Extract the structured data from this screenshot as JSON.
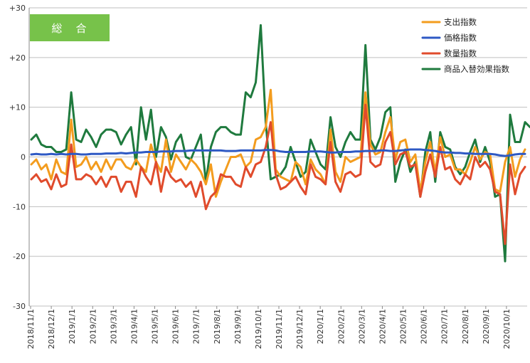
{
  "chart_data": {
    "type": "line",
    "title": "総　合",
    "colors": {
      "title_box": "#77c24a",
      "grid": "#bfbfbf",
      "axis": "#888888"
    },
    "ylim": [
      -30,
      30
    ],
    "y_ticks": [
      {
        "value": 30,
        "label": "+30"
      },
      {
        "value": 20,
        "label": "+20"
      },
      {
        "value": 10,
        "label": "+10"
      },
      {
        "value": 0,
        "label": "0"
      },
      {
        "value": -10,
        "label": "-10"
      },
      {
        "value": -20,
        "label": "-20"
      },
      {
        "value": -30,
        "label": "-30"
      }
    ],
    "grid": true,
    "legend_position": "top-right",
    "x_tick_labels": [
      "2018/11/1",
      "2018/12/1",
      "2019/1/1",
      "2019/2/1",
      "2019/3/1",
      "2019/4/1",
      "2019/5/1",
      "2019/6/1",
      "2019/7/1",
      "2019/8/1",
      "2019/9/1",
      "2019/10/1",
      "2019/11/1",
      "2019/12/1",
      "2020/1/1",
      "2020/2/1",
      "2020/3/1",
      "2020/4/1",
      "2020/5/1",
      "2020/6/1",
      "2020/7/1",
      "2020/8/1",
      "2020/9/1",
      "2020/10/1"
    ],
    "x_unit": "weeks",
    "series": [
      {
        "name": "支出指数",
        "color": "#f39c1e",
        "values": [
          -1.5,
          -0.5,
          -2.5,
          -1.5,
          -4.5,
          -0.5,
          -3,
          -3.5,
          7.5,
          -2,
          -1.5,
          0,
          -2.5,
          -1,
          -3,
          -0.5,
          -2.5,
          -0.5,
          -0.5,
          -2,
          -2.5,
          -0.5,
          -2,
          -3,
          2.5,
          -1,
          -3,
          3.5,
          -3,
          0.5,
          -1,
          -2.5,
          -0.5,
          -1.5,
          -3,
          -5.5,
          -1.5,
          -8,
          -5,
          -2.5,
          0,
          0,
          0.5,
          -2,
          -1,
          3.5,
          4,
          6,
          13.5,
          -2.5,
          -4,
          -4.5,
          -5,
          -1,
          -2,
          -5.5,
          -0.5,
          -2.5,
          -3.5,
          -5.5,
          5.5,
          -3,
          -5,
          0,
          -1,
          -0.5,
          0,
          13,
          2.5,
          0.5,
          1,
          5,
          8,
          -0.5,
          3,
          3.5,
          -1,
          0.5,
          -7,
          -1,
          3,
          -3,
          4,
          0,
          0.5,
          -2.5,
          -2.5,
          -3.5,
          -1,
          2,
          -0.5,
          1,
          0.5,
          -6.5,
          -7,
          -1,
          2,
          -4,
          -0.5,
          1.5
        ]
      },
      {
        "name": "価格指数",
        "color": "#2e59c4",
        "values": [
          0.5,
          0.6,
          0.5,
          0.5,
          0.6,
          0.5,
          0.6,
          0.5,
          0.6,
          0.6,
          0.5,
          0.5,
          0.6,
          0.6,
          0.6,
          0.7,
          0.7,
          0.7,
          0.8,
          0.7,
          0.8,
          0.9,
          0.9,
          1,
          1,
          1,
          1.1,
          1.1,
          1.1,
          1.2,
          1.2,
          1.2,
          1.3,
          1.3,
          1.3,
          1.3,
          1.3,
          1.3,
          1.3,
          1.2,
          1.2,
          1.2,
          1.3,
          1.3,
          1.3,
          1.3,
          1.3,
          1.4,
          1.4,
          1.3,
          1.1,
          1,
          1,
          1,
          1,
          1,
          1.1,
          1.1,
          1.1,
          1,
          0.9,
          0.9,
          1,
          1,
          1,
          1.1,
          1.1,
          1.2,
          1.2,
          1.2,
          1.3,
          1.3,
          1.2,
          1.2,
          1.3,
          1.4,
          1.5,
          1.5,
          1.5,
          1.4,
          1.3,
          1.2,
          1,
          0.9,
          0.9,
          0.8,
          0.8,
          0.7,
          0.7,
          0.6,
          0.6,
          0.6,
          0.6,
          0.5,
          0.3,
          0.2,
          0.3,
          0.5,
          0.6,
          0.6
        ]
      },
      {
        "name": "数量指数",
        "color": "#e04b2c",
        "values": [
          -4.5,
          -3.5,
          -5,
          -4.5,
          -6.5,
          -3.5,
          -6,
          -5.5,
          2.5,
          -4.5,
          -4.5,
          -3.5,
          -4,
          -5.5,
          -4,
          -6,
          -4,
          -4,
          -7,
          -5,
          -5,
          -8,
          -2,
          -4,
          -5.5,
          -1,
          -7,
          -2,
          -4,
          -5,
          -4.5,
          -6,
          -5,
          -8,
          -5,
          -10.5,
          -8,
          -7,
          -3.5,
          -4,
          -4,
          -5.5,
          -6,
          -2,
          -4,
          -1.5,
          -1,
          2,
          7,
          -3.5,
          -6.5,
          -6,
          -5,
          -4,
          -6,
          -7.5,
          -1.5,
          -4,
          -4.5,
          -5.5,
          3,
          -5,
          -7,
          -3.5,
          -3,
          -4,
          -3.5,
          10.5,
          -1,
          -2,
          -1.5,
          3,
          5,
          -1.5,
          0.5,
          1,
          -2,
          -1.5,
          -8,
          -3,
          0.5,
          -4,
          2,
          -2.5,
          -2,
          -4.5,
          -5.5,
          -3.5,
          -4.5,
          0,
          -2,
          -1,
          -2.5,
          -7,
          -7.5,
          -17.5,
          -1.5,
          -7.5,
          -3.5,
          -2
        ]
      },
      {
        "name": "商品入替効果指数",
        "color": "#1f7a3e",
        "values": [
          3.5,
          4.5,
          2.5,
          2,
          2,
          1,
          1,
          1.5,
          13,
          3.5,
          3,
          5.5,
          4,
          2,
          4.5,
          5.5,
          5.5,
          5,
          2.5,
          4.5,
          6,
          -1.5,
          10,
          3.5,
          9.5,
          0,
          6,
          4,
          -0.5,
          3,
          4.5,
          0,
          -0.5,
          2,
          4.5,
          -5,
          2,
          5,
          6,
          6,
          5,
          4.5,
          4.5,
          13,
          12,
          15,
          26.5,
          7,
          -4.5,
          -4,
          -3.5,
          -2,
          2,
          -1,
          -4,
          -3,
          3.5,
          1,
          -1.5,
          -2.5,
          8,
          2,
          0,
          3,
          5,
          3.5,
          3.5,
          22.5,
          3.5,
          1.5,
          4,
          9,
          10,
          -5,
          -1,
          1.5,
          -3,
          -1,
          -8,
          1,
          5,
          -5,
          5,
          2,
          1.5,
          -2,
          -3.5,
          -2,
          1,
          3.5,
          -1,
          2,
          -1,
          -8,
          -7.5,
          -21,
          8.5,
          3,
          3,
          7,
          6
        ]
      }
    ]
  }
}
